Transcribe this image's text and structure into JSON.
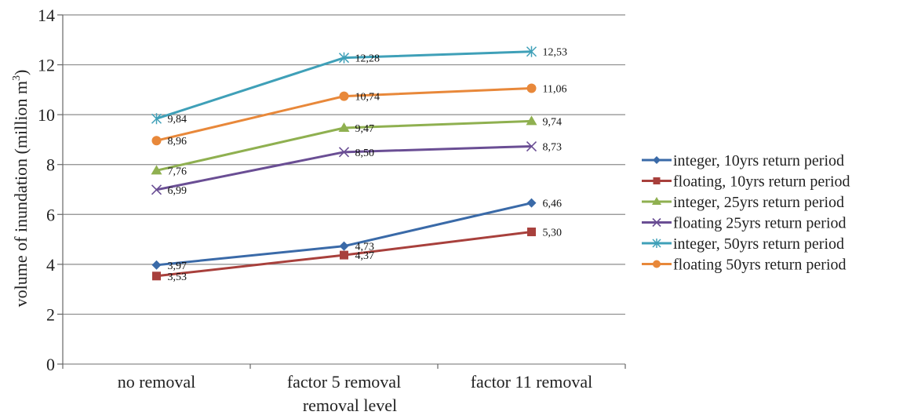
{
  "chart_data": {
    "type": "line",
    "categories": [
      "no removal",
      "factor 5 removal",
      "factor 11 removal"
    ],
    "xlabel": "removal level",
    "ylabel": "volume of inundation (million m",
    "ylabel_sup": "3",
    "ylabel_close": ")",
    "ylim": [
      0,
      14
    ],
    "yticks": [
      0,
      2,
      4,
      6,
      8,
      10,
      12,
      14
    ],
    "grid": true,
    "legend_position": "right",
    "series": [
      {
        "name": "integer, 10yrs return period",
        "values": [
          3.97,
          4.73,
          6.46
        ],
        "labels": [
          "3,97",
          "4,73",
          "6,46"
        ],
        "color": "#3a6aa8",
        "marker": "diamond"
      },
      {
        "name": "floating, 10yrs return period",
        "values": [
          3.53,
          4.37,
          5.3
        ],
        "labels": [
          "3,53",
          "4,37",
          "5,30"
        ],
        "color": "#a8403c",
        "marker": "square"
      },
      {
        "name": "integer, 25yrs return period",
        "values": [
          7.76,
          9.47,
          9.74
        ],
        "labels": [
          "7,76",
          "9,47",
          "9,74"
        ],
        "color": "#8fb050",
        "marker": "triangle"
      },
      {
        "name": "floating 25yrs return period",
        "values": [
          6.99,
          8.5,
          8.73
        ],
        "labels": [
          "6,99",
          "8,50",
          "8,73"
        ],
        "color": "#6a4e94",
        "marker": "x"
      },
      {
        "name": "integer, 50yrs return period",
        "values": [
          9.84,
          12.28,
          12.53
        ],
        "labels": [
          "9,84",
          "12,28",
          "12,53"
        ],
        "color": "#3fa0b8",
        "marker": "star"
      },
      {
        "name": "floating 50yrs return period",
        "values": [
          8.96,
          10.74,
          11.06
        ],
        "labels": [
          "8,96",
          "10,74",
          "11,06"
        ],
        "color": "#e8883a",
        "marker": "circle"
      }
    ]
  }
}
